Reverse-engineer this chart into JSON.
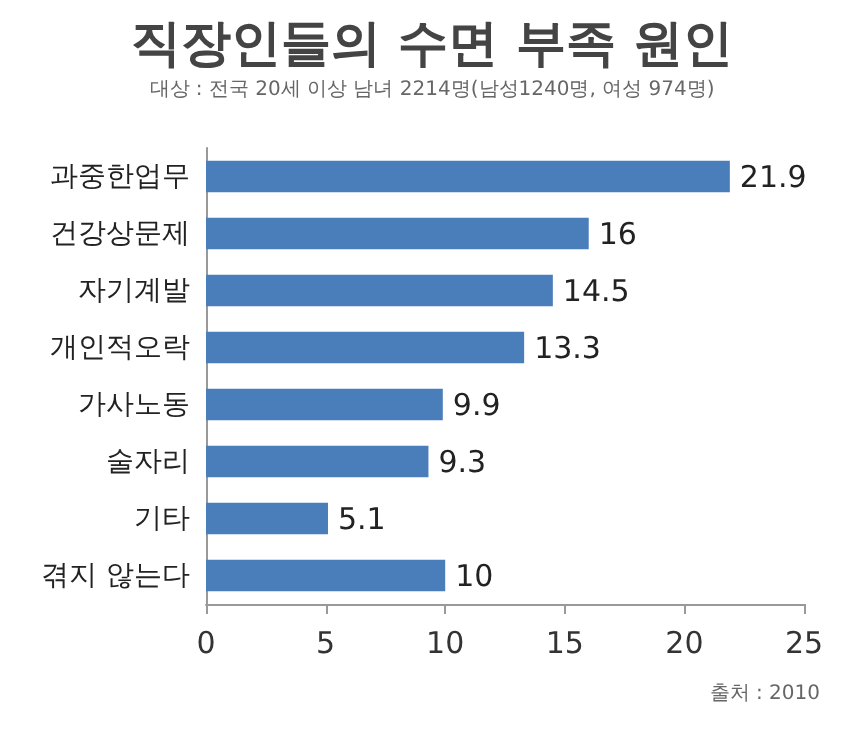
{
  "chart_data": {
    "type": "bar",
    "orientation": "horizontal",
    "title": "직장인들의 수면 부족 원인",
    "subtitle": "대상 : 전국 20세 이상 남녀 2214명(남성1240명, 여성 974명)",
    "categories": [
      "과중한업무",
      "건강상문제",
      "자기계발",
      "개인적오락",
      "가사노동",
      "술자리",
      "기타",
      "겪지 않는다"
    ],
    "values": [
      21.9,
      16,
      14.5,
      13.3,
      9.9,
      9.3,
      5.1,
      10
    ],
    "color": "#4a7ebb",
    "xlim": [
      0,
      25
    ],
    "xticks": [
      0,
      5,
      10,
      15,
      20,
      25
    ],
    "grid": false,
    "data_labels": true,
    "annotations": [
      "출처 : 2010"
    ]
  }
}
